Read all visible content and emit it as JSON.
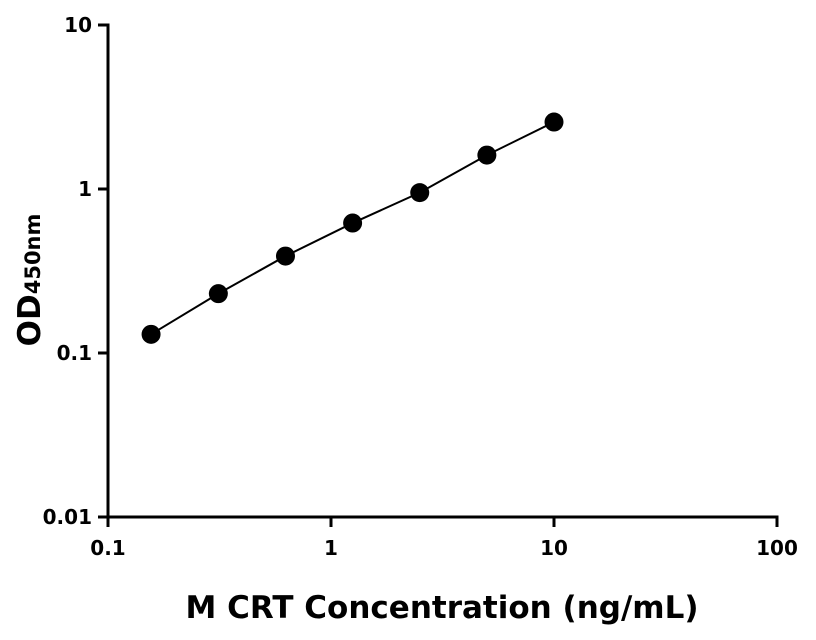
{
  "chart_data": {
    "type": "scatter-line",
    "x_label": "M CRT Concentration (ng/mL)",
    "y_label": "OD",
    "y_label_subscript": "450nm",
    "x": [
      0.156,
      0.3125,
      0.625,
      1.25,
      2.5,
      5,
      10
    ],
    "values": [
      0.13,
      0.23,
      0.39,
      0.62,
      0.95,
      1.61,
      2.56
    ],
    "color": "#000000",
    "x_log": true,
    "y_log": true,
    "xlim": [
      0.1,
      100
    ],
    "xticks": [
      0.1,
      1,
      10,
      100
    ],
    "ylim": [
      0.01,
      10
    ],
    "yticks": [
      0.01,
      0.1,
      1,
      10
    ]
  }
}
